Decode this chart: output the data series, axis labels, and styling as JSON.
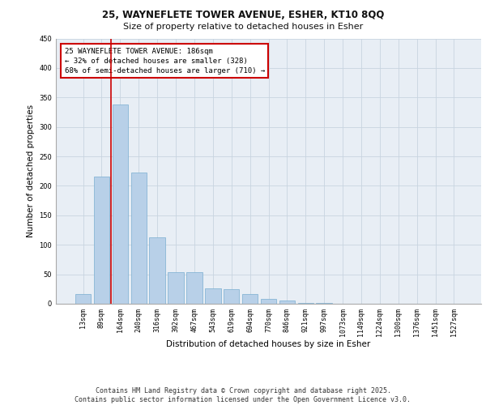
{
  "title_line1": "25, WAYNEFLETE TOWER AVENUE, ESHER, KT10 8QQ",
  "title_line2": "Size of property relative to detached houses in Esher",
  "xlabel": "Distribution of detached houses by size in Esher",
  "ylabel": "Number of detached properties",
  "categories": [
    "13sqm",
    "89sqm",
    "164sqm",
    "240sqm",
    "316sqm",
    "392sqm",
    "467sqm",
    "543sqm",
    "619sqm",
    "694sqm",
    "770sqm",
    "846sqm",
    "921sqm",
    "997sqm",
    "1073sqm",
    "1149sqm",
    "1224sqm",
    "1300sqm",
    "1376sqm",
    "1451sqm",
    "1527sqm"
  ],
  "values": [
    16,
    216,
    338,
    222,
    112,
    54,
    54,
    26,
    25,
    17,
    8,
    6,
    1,
    1,
    0,
    0,
    0,
    0,
    0,
    0,
    0
  ],
  "bar_color": "#b8d0e8",
  "bar_edge_color": "#7aaed0",
  "vline_color": "#cc0000",
  "annotation_line1": "25 WAYNEFLETE TOWER AVENUE: 186sqm",
  "annotation_line2": "← 32% of detached houses are smaller (328)",
  "annotation_line3": "68% of semi-detached houses are larger (710) →",
  "annotation_box_color": "#cc0000",
  "ylim": [
    0,
    450
  ],
  "yticks": [
    0,
    50,
    100,
    150,
    200,
    250,
    300,
    350,
    400,
    450
  ],
  "grid_color": "#c8d4e0",
  "background_color": "#e8eef5",
  "footer_text": "Contains HM Land Registry data © Crown copyright and database right 2025.\nContains public sector information licensed under the Open Government Licence v3.0.",
  "title1_fontsize": 8.5,
  "title2_fontsize": 8,
  "xlabel_fontsize": 7.5,
  "ylabel_fontsize": 7.5,
  "tick_fontsize": 6,
  "annot_fontsize": 6.5,
  "footer_fontsize": 6
}
